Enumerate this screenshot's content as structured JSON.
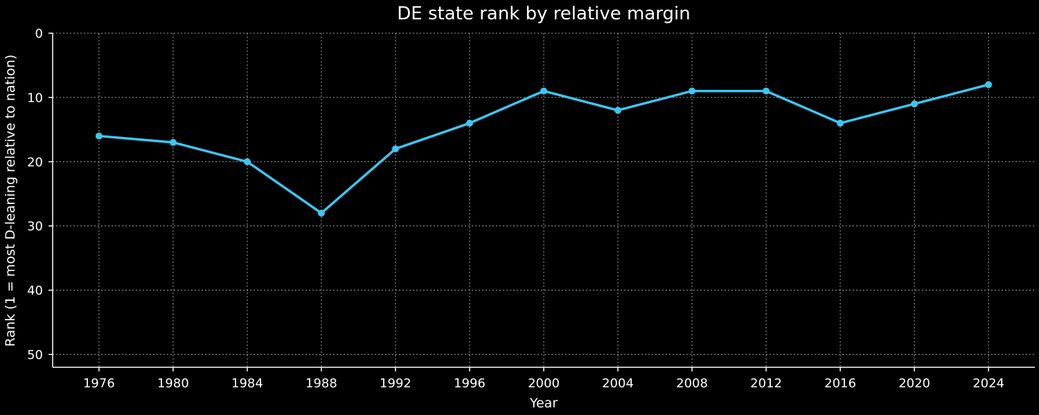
{
  "chart_data": {
    "type": "line",
    "title": "DE state rank by relative margin",
    "xlabel": "Year",
    "ylabel": "Rank (1 = most D-leaning relative to nation)",
    "x": [
      1976,
      1980,
      1984,
      1988,
      1992,
      1996,
      2000,
      2004,
      2008,
      2012,
      2016,
      2020,
      2024
    ],
    "series": [
      {
        "values": [
          16,
          17,
          20,
          28,
          18,
          14,
          9,
          12,
          9,
          9,
          14,
          11,
          8
        ]
      }
    ],
    "xticks": [
      1976,
      1980,
      1984,
      1988,
      1992,
      1996,
      2000,
      2004,
      2008,
      2012,
      2016,
      2020,
      2024
    ],
    "yticks": [
      0,
      10,
      20,
      30,
      40,
      50
    ],
    "xlim": [
      1973.5,
      2026.5
    ],
    "ylim": [
      52,
      0
    ],
    "y_inverted": true,
    "grid": true,
    "line_color": "#3ec6f0",
    "background": "#000000"
  }
}
